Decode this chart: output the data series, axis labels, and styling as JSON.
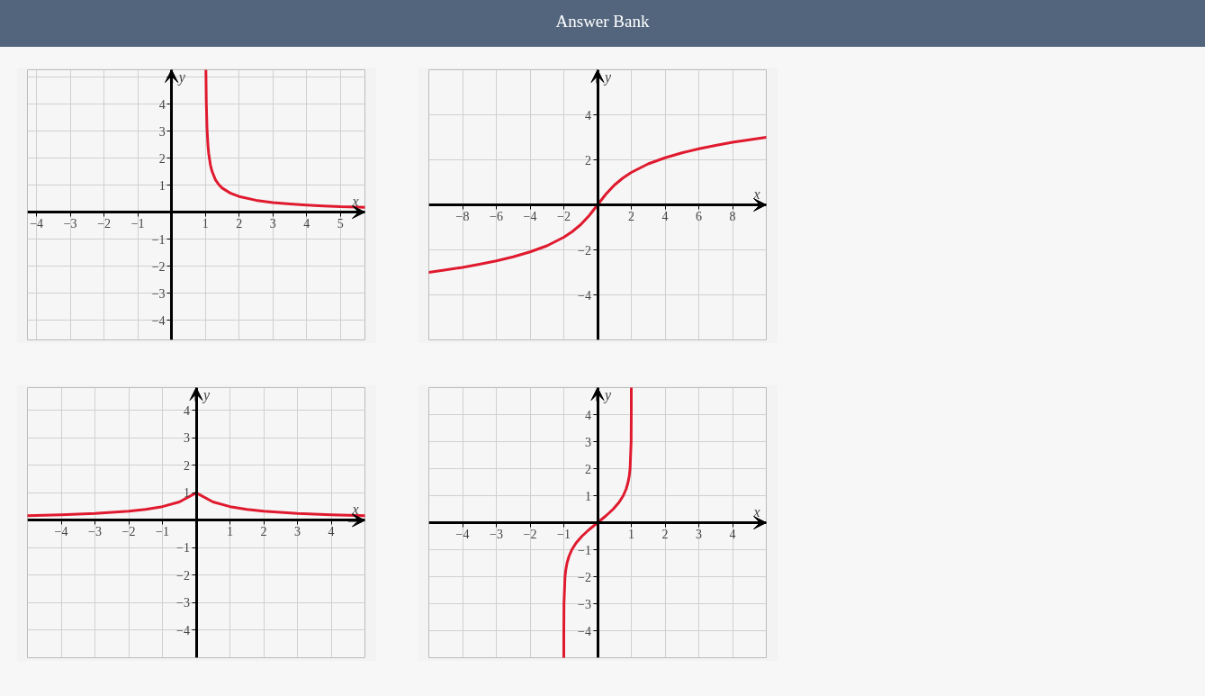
{
  "chart_data": [
    {
      "type": "line",
      "annotations": [
        "Answer Bank"
      ],
      "xlabel": "x",
      "ylabel": "y",
      "xlim": [
        -4.27,
        5.73
      ],
      "ylim": [
        -4.73,
        5.27
      ],
      "xticks": [
        -4,
        -3,
        -2,
        -1,
        1,
        2,
        3,
        4,
        5
      ],
      "yticks": [
        -4,
        -3,
        -2,
        -1,
        1,
        2,
        3,
        4,
        {
          "value": 5,
          "label": null
        }
      ],
      "grid": true,
      "series": [
        {
          "color": "#e01a2e",
          "x": [
            1.018,
            1.03,
            1.05,
            1.08,
            1.1,
            1.15,
            1.2,
            1.3,
            1.4,
            1.5,
            1.75,
            2,
            2.5,
            3,
            3.5,
            4,
            4.5,
            5,
            5.73
          ],
          "values": [
            5.25,
            4.05,
            3.12,
            2.45,
            2.18,
            1.76,
            1.51,
            1.2,
            1.02,
            0.89,
            0.7,
            0.58,
            0.44,
            0.35,
            0.3,
            0.26,
            0.23,
            0.2,
            0.18
          ]
        }
      ]
    },
    {
      "type": "line",
      "xlabel": "x",
      "ylabel": "y",
      "xlim": [
        -10,
        10
      ],
      "ylim": [
        -6,
        6
      ],
      "xticks": [
        -8,
        -6,
        -4,
        -2,
        2,
        4,
        6,
        8
      ],
      "yticks": [
        -4,
        -2,
        2,
        4
      ],
      "grid": true,
      "series": [
        {
          "color": "#e01a2e",
          "x": [
            -10,
            -9,
            -8,
            -7,
            -6,
            -5,
            -4,
            -3,
            -2,
            -1.5,
            -1,
            -0.5,
            0,
            0.5,
            1,
            1.5,
            2,
            3,
            4,
            5,
            6,
            7,
            8,
            9,
            10
          ],
          "values": [
            -3.0,
            -2.89,
            -2.78,
            -2.64,
            -2.49,
            -2.31,
            -2.09,
            -1.82,
            -1.44,
            -1.19,
            -0.88,
            -0.48,
            0,
            0.48,
            0.88,
            1.19,
            1.44,
            1.82,
            2.09,
            2.31,
            2.49,
            2.64,
            2.78,
            2.89,
            3.0
          ]
        }
      ]
    },
    {
      "type": "line",
      "xlabel": "x",
      "ylabel": "y",
      "xlim": [
        -5,
        5
      ],
      "ylim": [
        -5,
        4.83
      ],
      "xticks": [
        -4,
        -3,
        -2,
        -1,
        1,
        2,
        3,
        4
      ],
      "yticks": [
        -4,
        -3,
        -2,
        -1,
        1,
        2,
        3,
        4
      ],
      "grid": true,
      "series": [
        {
          "color": "#e01a2e",
          "x": [
            -5,
            -4,
            -3,
            -2,
            -1.5,
            -1,
            -0.5,
            0,
            0.5,
            1,
            1.5,
            2,
            3,
            4,
            5
          ],
          "values": [
            0.17,
            0.2,
            0.25,
            0.33,
            0.4,
            0.5,
            0.67,
            1,
            0.67,
            0.5,
            0.4,
            0.33,
            0.25,
            0.2,
            0.17
          ]
        }
      ]
    },
    {
      "type": "line",
      "xlabel": "x",
      "ylabel": "y",
      "xlim": [
        -5,
        5
      ],
      "ylim": [
        -5,
        5
      ],
      "xticks": [
        -4,
        -3,
        -2,
        -1,
        1,
        2,
        3,
        4
      ],
      "yticks": [
        -4,
        -3,
        -2,
        -1,
        1,
        2,
        3,
        4
      ],
      "grid": true,
      "series": [
        {
          "color": "#e01a2e",
          "x": [
            -0.9999,
            -0.9993,
            -0.995,
            -0.964,
            -0.9414,
            -0.9052,
            -0.8483,
            -0.7616,
            -0.6352,
            -0.4621,
            -0.2449,
            0,
            0.2449,
            0.4621,
            0.6352,
            0.7616,
            0.8483,
            0.9052,
            0.9414,
            0.964,
            0.995,
            0.9993,
            0.9999
          ],
          "values": [
            -5,
            -4,
            -3,
            -2,
            -1.75,
            -1.5,
            -1.25,
            -1,
            -0.75,
            -0.5,
            -0.25,
            0,
            0.25,
            0.5,
            0.75,
            1,
            1.25,
            1.5,
            1.75,
            2,
            3,
            4,
            5
          ]
        }
      ]
    }
  ]
}
